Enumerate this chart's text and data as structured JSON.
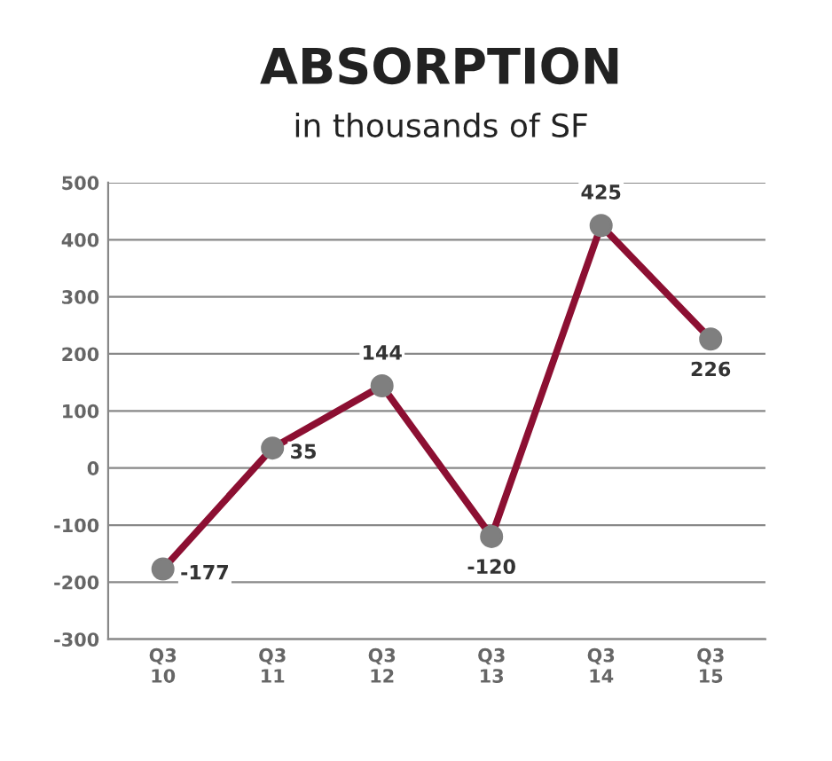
{
  "chart_data": {
    "type": "line",
    "title": "ABSORPTION",
    "subtitle": "in thousands of SF",
    "categories": [
      "Q3\n10",
      "Q3\n11",
      "Q3\n12",
      "Q3\n13",
      "Q3\n14",
      "Q3\n15"
    ],
    "series": [
      {
        "color": "#8c0f32",
        "colors": [
          "#7f7f7f",
          "#7f7f7f",
          "#7f7f7f",
          "#7f7f7f",
          "#7f7f7f",
          "#7f7f7f"
        ],
        "values": [
          -177,
          35,
          144,
          -120,
          425,
          226
        ]
      }
    ],
    "ylim": [
      -300,
      500
    ],
    "yticks": [
      -300,
      -200,
      -100,
      0,
      100,
      200,
      300,
      400,
      500
    ],
    "grid": "y",
    "marker": "circle",
    "line_style": "solid",
    "data_labels": true,
    "legend": false
  }
}
